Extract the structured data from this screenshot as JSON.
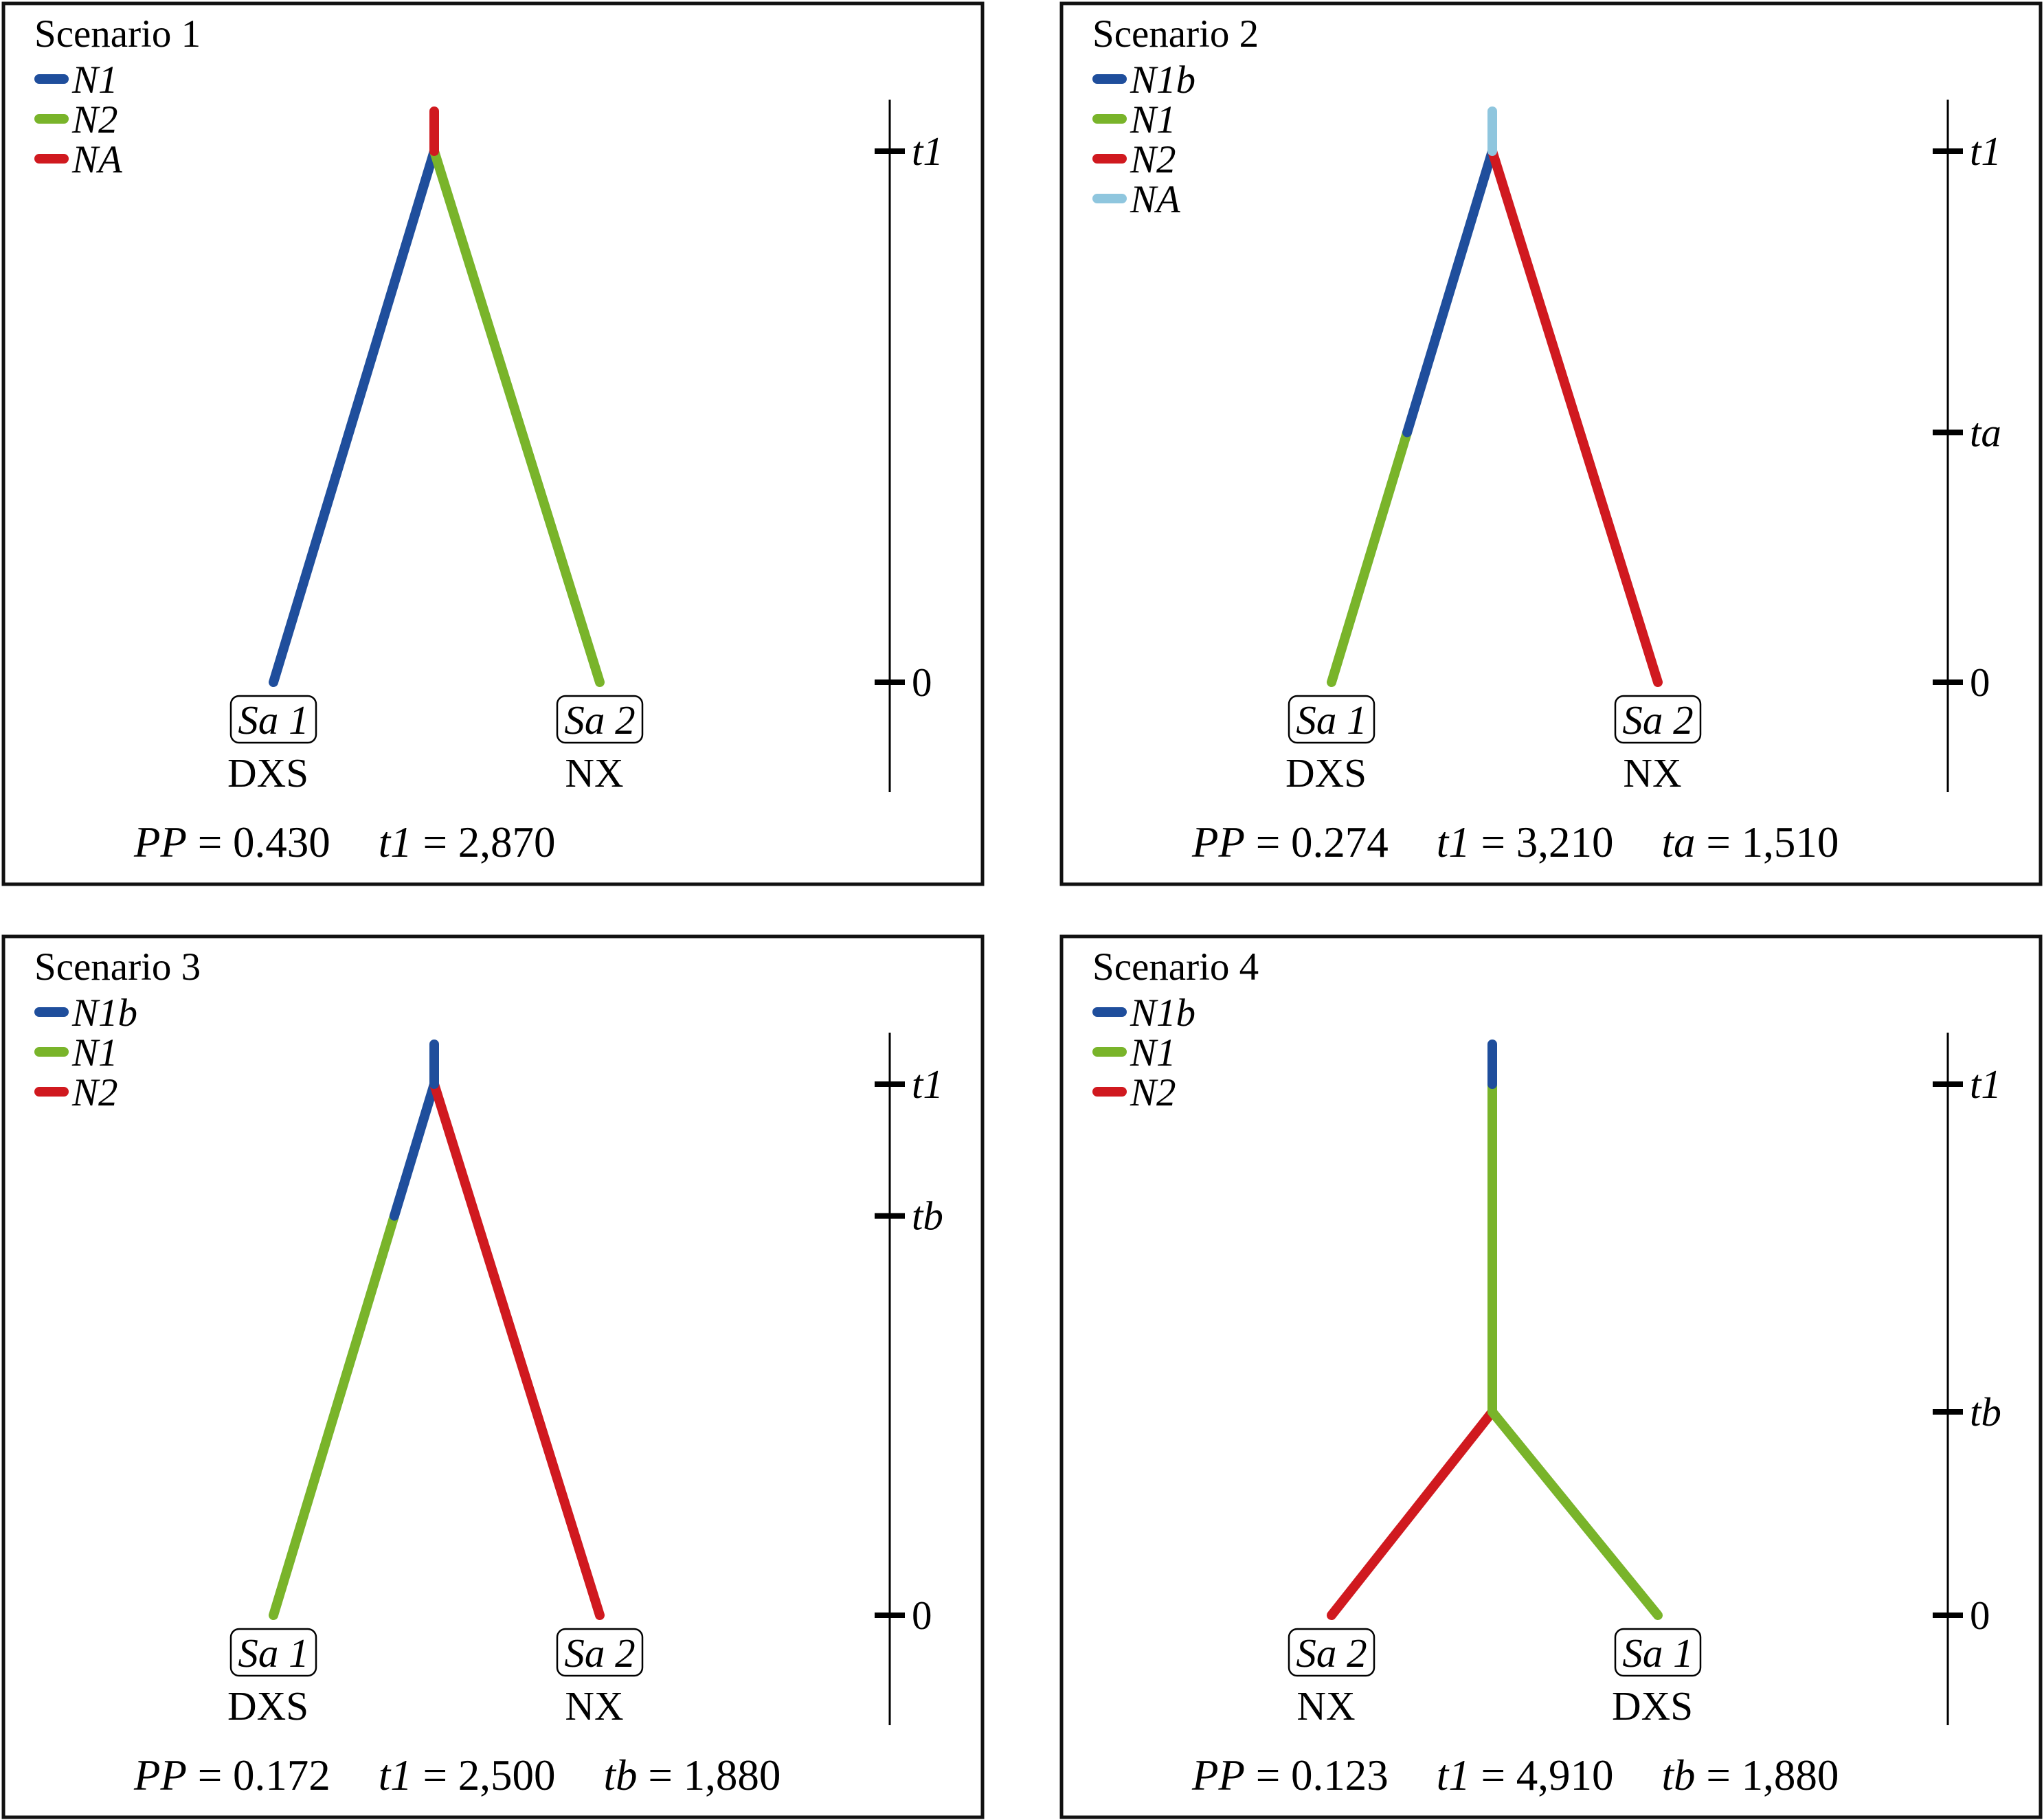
{
  "colors": {
    "blue": "#1f4e9c",
    "green": "#79b42a",
    "red": "#d0191f",
    "lightblue": "#8fc6de",
    "frame": "#111111"
  },
  "scenarios": [
    {
      "title": "Scenario 1",
      "legend": [
        {
          "label": "N1",
          "color": "blue"
        },
        {
          "label": "N2",
          "color": "green"
        },
        {
          "label": "NA",
          "color": "red"
        }
      ],
      "time_axis": [
        {
          "label": "t1",
          "time": 2870
        },
        {
          "label": "0",
          "time": 0
        }
      ],
      "root_time": 2870,
      "shared_stem_color": "red",
      "topology": "split-at-root",
      "left_leaf": {
        "sample": "Sa 1",
        "population": "DXS"
      },
      "right_leaf": {
        "sample": "Sa 2",
        "population": "NX"
      },
      "left_branch": [
        {
          "color": "blue",
          "from": 0,
          "to": 2870
        }
      ],
      "right_branch": [
        {
          "color": "green",
          "from": 0,
          "to": 2870
        }
      ],
      "footer": [
        {
          "name": "PP",
          "value": "0.430"
        },
        {
          "name": "t1",
          "value": "2,870"
        }
      ]
    },
    {
      "title": "Scenario 2",
      "legend": [
        {
          "label": "N1b",
          "color": "blue"
        },
        {
          "label": "N1",
          "color": "green"
        },
        {
          "label": "N2",
          "color": "red"
        },
        {
          "label": "NA",
          "color": "lightblue"
        }
      ],
      "time_axis": [
        {
          "label": "t1",
          "time": 3210
        },
        {
          "label": "ta",
          "time": 1510
        },
        {
          "label": "0",
          "time": 0
        }
      ],
      "root_time": 3210,
      "shared_stem_color": "lightblue",
      "topology": "split-at-root",
      "left_leaf": {
        "sample": "Sa 1",
        "population": "DXS"
      },
      "right_leaf": {
        "sample": "Sa 2",
        "population": "NX"
      },
      "left_branch": [
        {
          "color": "green",
          "from": 0,
          "to": 1510
        },
        {
          "color": "blue",
          "from": 1510,
          "to": 3210
        }
      ],
      "right_branch": [
        {
          "color": "red",
          "from": 0,
          "to": 3210
        }
      ],
      "footer": [
        {
          "name": "PP",
          "value": "0.274"
        },
        {
          "name": "t1",
          "value": "3,210"
        },
        {
          "name": "ta",
          "value": "1,510"
        }
      ]
    },
    {
      "title": "Scenario 3",
      "legend": [
        {
          "label": "N1b",
          "color": "blue"
        },
        {
          "label": "N1",
          "color": "green"
        },
        {
          "label": "N2",
          "color": "red"
        }
      ],
      "time_axis": [
        {
          "label": "t1",
          "time": 2500
        },
        {
          "label": "tb",
          "time": 1880
        },
        {
          "label": "0",
          "time": 0
        }
      ],
      "root_time": 2500,
      "shared_stem_color": "blue",
      "topology": "split-at-root",
      "left_leaf": {
        "sample": "Sa 1",
        "population": "DXS"
      },
      "right_leaf": {
        "sample": "Sa 2",
        "population": "NX"
      },
      "left_branch": [
        {
          "color": "green",
          "from": 0,
          "to": 1880
        },
        {
          "color": "blue",
          "from": 1880,
          "to": 2500
        }
      ],
      "right_branch": [
        {
          "color": "red",
          "from": 0,
          "to": 2500
        }
      ],
      "footer": [
        {
          "name": "PP",
          "value": "0.172"
        },
        {
          "name": "t1",
          "value": "2,500"
        },
        {
          "name": "tb",
          "value": "1,880"
        }
      ]
    },
    {
      "title": "Scenario 4",
      "legend": [
        {
          "label": "N1b",
          "color": "blue"
        },
        {
          "label": "N1",
          "color": "green"
        },
        {
          "label": "N2",
          "color": "red"
        }
      ],
      "time_axis": [
        {
          "label": "t1",
          "time": 4910
        },
        {
          "label": "tb",
          "time": 1880
        },
        {
          "label": "0",
          "time": 0
        }
      ],
      "root_time": 4910,
      "shared_stem_color": "blue",
      "topology": "split-at-tb",
      "trunk": [
        {
          "color": "green",
          "from": 1880,
          "to": 4910
        }
      ],
      "left_leaf": {
        "sample": "Sa 2",
        "population": "NX"
      },
      "right_leaf": {
        "sample": "Sa 1",
        "population": "DXS"
      },
      "left_branch": [
        {
          "color": "red",
          "from": 0,
          "to": 1880
        }
      ],
      "right_branch": [
        {
          "color": "green",
          "from": 0,
          "to": 1880
        }
      ],
      "footer": [
        {
          "name": "PP",
          "value": "0.123"
        },
        {
          "name": "t1",
          "value": "4,910"
        },
        {
          "name": "tb",
          "value": "1,880"
        }
      ]
    }
  ]
}
